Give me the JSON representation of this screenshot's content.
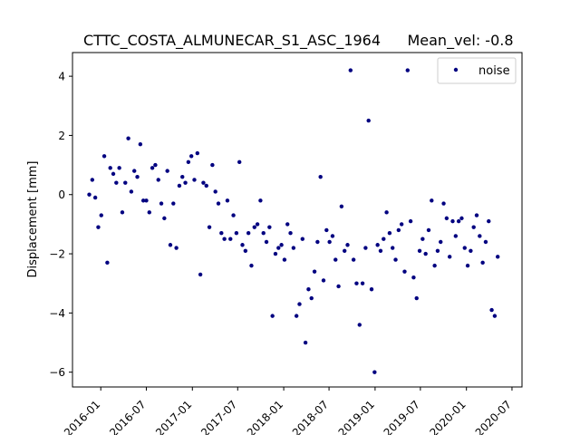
{
  "chart_data": {
    "type": "scatter",
    "title": "CTTC_COSTA_ALMUNECAR_S1_ASC_1964",
    "subtitle": "Mean_vel: -0.8",
    "xlabel": "",
    "ylabel": "Displacement [mm]",
    "xlim": [
      "2015-09-10",
      "2020-08-10"
    ],
    "ylim": [
      -6.5,
      4.8
    ],
    "x_tick_labels": [
      "2016-01",
      "2016-07",
      "2017-01",
      "2017-07",
      "2018-01",
      "2018-07",
      "2019-01",
      "2019-07",
      "2020-01",
      "2020-07"
    ],
    "x_tick_values": [
      "2016-01-01",
      "2016-07-01",
      "2017-01-01",
      "2017-07-01",
      "2018-01-01",
      "2018-07-01",
      "2019-01-01",
      "2019-07-01",
      "2020-01-01",
      "2020-07-01"
    ],
    "y_tick_values": [
      -6,
      -4,
      -2,
      0,
      2,
      4
    ],
    "y_tick_labels": [
      "−6",
      "−4",
      "−2",
      "0",
      "2",
      "4"
    ],
    "grid": false,
    "legend": {
      "entries": [
        "noise"
      ],
      "position": "top-right"
    },
    "series": [
      {
        "name": "noise",
        "color": "#000080",
        "x": [
          "2015-11-16",
          "2015-11-28",
          "2015-12-10",
          "2015-12-22",
          "2016-01-03",
          "2016-01-15",
          "2016-01-27",
          "2016-02-08",
          "2016-02-20",
          "2016-03-03",
          "2016-03-15",
          "2016-03-27",
          "2016-04-08",
          "2016-04-20",
          "2016-05-02",
          "2016-05-14",
          "2016-05-26",
          "2016-06-07",
          "2016-06-19",
          "2016-07-01",
          "2016-07-13",
          "2016-07-25",
          "2016-08-06",
          "2016-08-18",
          "2016-08-30",
          "2016-09-11",
          "2016-09-23",
          "2016-10-05",
          "2016-10-17",
          "2016-10-29",
          "2016-11-10",
          "2016-11-22",
          "2016-12-04",
          "2016-12-16",
          "2016-12-28",
          "2017-01-09",
          "2017-01-21",
          "2017-02-02",
          "2017-02-14",
          "2017-02-26",
          "2017-03-10",
          "2017-03-22",
          "2017-04-03",
          "2017-04-15",
          "2017-04-27",
          "2017-05-09",
          "2017-05-21",
          "2017-06-02",
          "2017-06-14",
          "2017-06-26",
          "2017-07-08",
          "2017-07-20",
          "2017-08-01",
          "2017-08-13",
          "2017-08-25",
          "2017-09-06",
          "2017-09-18",
          "2017-09-30",
          "2017-10-12",
          "2017-10-24",
          "2017-11-05",
          "2017-11-17",
          "2017-11-29",
          "2017-12-11",
          "2017-12-23",
          "2018-01-04",
          "2018-01-16",
          "2018-01-28",
          "2018-02-09",
          "2018-02-21",
          "2018-03-05",
          "2018-03-17",
          "2018-03-29",
          "2018-04-10",
          "2018-04-22",
          "2018-05-04",
          "2018-05-16",
          "2018-05-28",
          "2018-06-09",
          "2018-06-21",
          "2018-07-03",
          "2018-07-15",
          "2018-07-27",
          "2018-08-08",
          "2018-08-20",
          "2018-09-01",
          "2018-09-13",
          "2018-09-25",
          "2018-10-07",
          "2018-10-19",
          "2018-10-31",
          "2018-11-12",
          "2018-11-24",
          "2018-12-06",
          "2018-12-18",
          "2018-12-30",
          "2019-01-11",
          "2019-01-23",
          "2019-02-04",
          "2019-02-16",
          "2019-02-28",
          "2019-03-12",
          "2019-03-24",
          "2019-04-05",
          "2019-04-17",
          "2019-04-29",
          "2019-05-11",
          "2019-05-23",
          "2019-06-04",
          "2019-06-16",
          "2019-06-28",
          "2019-07-10",
          "2019-07-22",
          "2019-08-03",
          "2019-08-15",
          "2019-08-27",
          "2019-09-08",
          "2019-09-20",
          "2019-10-02",
          "2019-10-14",
          "2019-10-26",
          "2019-11-07",
          "2019-11-19",
          "2019-12-01",
          "2019-12-13",
          "2019-12-25",
          "2020-01-06",
          "2020-01-18",
          "2020-01-30",
          "2020-02-11",
          "2020-02-23",
          "2020-03-06",
          "2020-03-18",
          "2020-03-30",
          "2020-04-11",
          "2020-04-23",
          "2020-05-05"
        ],
        "y": [
          0.0,
          0.5,
          -0.1,
          -1.1,
          -0.7,
          1.3,
          -2.3,
          0.9,
          0.7,
          0.4,
          0.9,
          -0.6,
          0.4,
          1.9,
          0.1,
          0.8,
          0.6,
          1.7,
          -0.2,
          -0.2,
          -0.6,
          0.9,
          1.0,
          0.5,
          -0.3,
          -0.8,
          0.8,
          -1.7,
          -0.3,
          -1.8,
          0.3,
          0.6,
          0.4,
          1.1,
          1.3,
          0.5,
          1.4,
          -2.7,
          0.4,
          0.3,
          -1.1,
          1.0,
          0.1,
          -0.3,
          -1.3,
          -1.5,
          -0.2,
          -1.5,
          -0.7,
          -1.3,
          1.1,
          -1.7,
          -1.9,
          -1.3,
          -2.4,
          -1.1,
          -1.0,
          -0.2,
          -1.3,
          -1.6,
          -1.1,
          -4.1,
          -2.0,
          -1.8,
          -1.7,
          -2.2,
          -1.0,
          -1.3,
          -1.8,
          -4.1,
          -3.7,
          -1.5,
          -5.0,
          -3.2,
          -3.5,
          -2.6,
          -1.6,
          0.6,
          -2.9,
          -1.2,
          -1.6,
          -1.4,
          -2.2,
          -3.1,
          -0.4,
          -1.9,
          -1.7,
          4.2,
          -2.2,
          -3.0,
          -4.4,
          -3.0,
          -1.8,
          2.5,
          -3.2,
          -6.0,
          -1.7,
          -1.9,
          -1.5,
          -0.6,
          -1.3,
          -1.8,
          -2.2,
          -1.2,
          -1.0,
          -2.6,
          4.2,
          -0.9,
          -2.8,
          -3.5,
          -1.9,
          -1.5,
          -2.0,
          -1.2,
          -0.2,
          -2.4,
          -1.9,
          -1.6,
          -0.3,
          -0.8,
          -2.1,
          -0.9,
          -1.4,
          -0.9,
          -0.8,
          -1.8,
          -2.4,
          -1.9,
          -1.1,
          -0.7,
          -1.4,
          -2.3,
          -1.6,
          -0.9,
          -3.9,
          -4.1,
          -2.1
        ]
      }
    ]
  }
}
